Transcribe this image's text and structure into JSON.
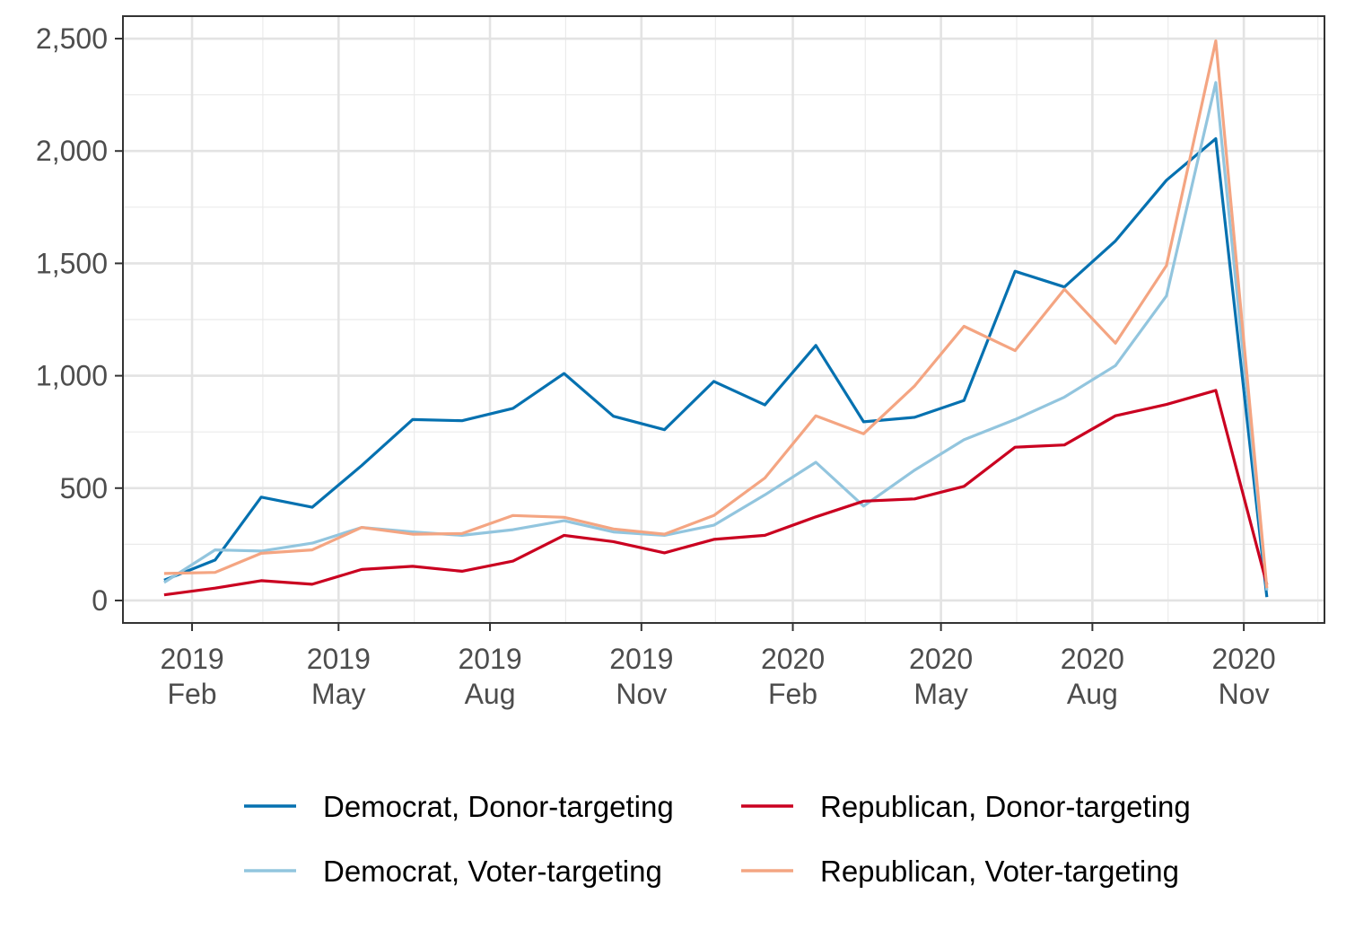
{
  "chart_data": {
    "type": "line",
    "title": "",
    "xlabel": "",
    "ylabel": "",
    "x": [
      "2019-01",
      "2019-02",
      "2019-03",
      "2019-04",
      "2019-05",
      "2019-06",
      "2019-07",
      "2019-08",
      "2019-09",
      "2019-10",
      "2019-11",
      "2019-12",
      "2020-01",
      "2020-02",
      "2020-03",
      "2020-04",
      "2020-05",
      "2020-06",
      "2020-07",
      "2020-08",
      "2020-09",
      "2020-10",
      "2020-11"
    ],
    "x_tick_labels": [
      {
        "date": "2019-02",
        "year": "2019",
        "month": "Feb"
      },
      {
        "date": "2019-05",
        "year": "2019",
        "month": "May"
      },
      {
        "date": "2019-08",
        "year": "2019",
        "month": "Aug"
      },
      {
        "date": "2019-11",
        "year": "2019",
        "month": "Nov"
      },
      {
        "date": "2020-02",
        "year": "2020",
        "month": "Feb"
      },
      {
        "date": "2020-05",
        "year": "2020",
        "month": "May"
      },
      {
        "date": "2020-08",
        "year": "2020",
        "month": "Aug"
      },
      {
        "date": "2020-11",
        "year": "2020",
        "month": "Nov"
      }
    ],
    "y_ticks": [
      0,
      500,
      1000,
      1500,
      2000,
      2500
    ],
    "y_tick_labels": [
      "0",
      "500",
      "1,000",
      "1,500",
      "2,000",
      "2,500"
    ],
    "xlim": [
      "2018-12-21",
      "2020-12-20"
    ],
    "ylim": [
      -100,
      2600
    ],
    "grid": true,
    "legend_position": "bottom",
    "series": [
      {
        "name": "Democrat, Donor-targeting",
        "color": "#0571b0",
        "values": [
          90,
          180,
          460,
          415,
          600,
          805,
          800,
          855,
          1010,
          820,
          760,
          975,
          870,
          1135,
          795,
          815,
          890,
          1465,
          1395,
          1600,
          1870,
          2055,
          15
        ]
      },
      {
        "name": "Democrat, Voter-targeting",
        "color": "#92c5de",
        "values": [
          80,
          225,
          220,
          255,
          325,
          305,
          290,
          315,
          355,
          305,
          290,
          335,
          470,
          615,
          420,
          580,
          715,
          805,
          905,
          1045,
          1355,
          2305,
          45
        ]
      },
      {
        "name": "Republican, Donor-targeting",
        "color": "#ca0020",
        "values": [
          25,
          55,
          88,
          72,
          138,
          152,
          130,
          175,
          290,
          262,
          212,
          272,
          290,
          372,
          442,
          452,
          508,
          682,
          692,
          822,
          872,
          935,
          70
        ]
      },
      {
        "name": "Republican, Voter-targeting",
        "color": "#f4a582",
        "values": [
          120,
          125,
          210,
          225,
          325,
          295,
          298,
          378,
          370,
          318,
          295,
          378,
          545,
          822,
          742,
          955,
          1220,
          1112,
          1385,
          1145,
          1490,
          2490,
          55
        ]
      }
    ],
    "legend": [
      {
        "name": "Democrat, Donor-targeting",
        "color": "#0571b0"
      },
      {
        "name": "Republican, Donor-targeting",
        "color": "#ca0020"
      },
      {
        "name": "Democrat, Voter-targeting",
        "color": "#92c5de"
      },
      {
        "name": "Republican, Voter-targeting",
        "color": "#f4a582"
      }
    ]
  }
}
